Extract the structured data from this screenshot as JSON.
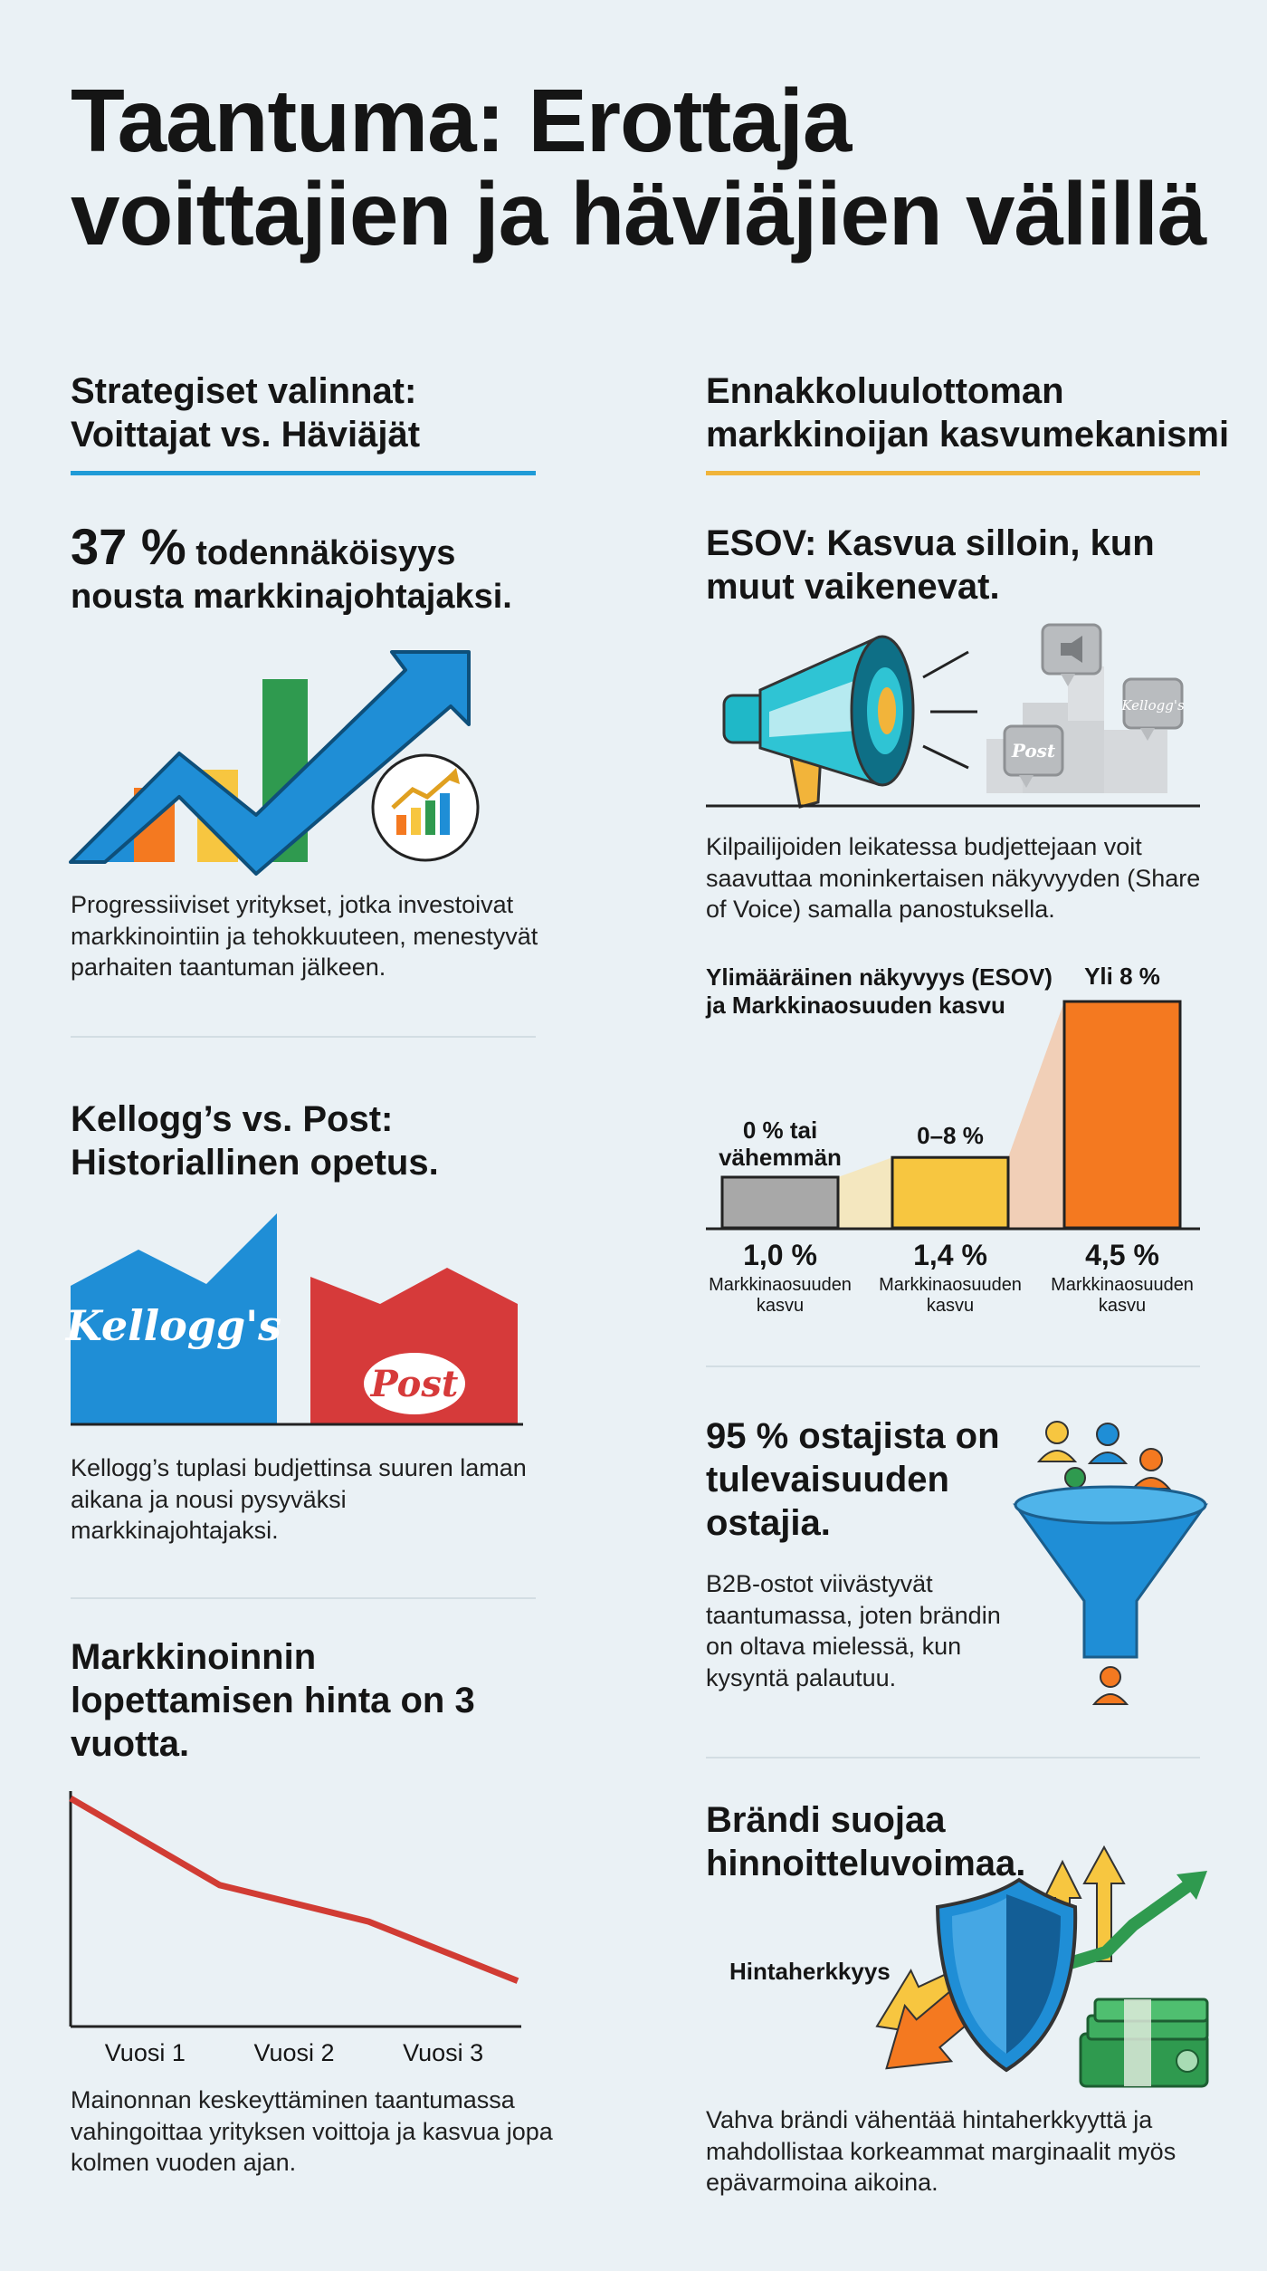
{
  "title": "Taantuma: Erottaja voittajien ja häviäjien välillä",
  "left_col": {
    "heading": "Strategiset valinnat: Voittajat vs. Häviäjät",
    "stat_number": "37 %",
    "stat_text_1": "todennäköisyys",
    "stat_text_2": "nousta markkinajohtajaksi.",
    "stat_body": "Progressiiviset yritykset, jotka investoivat markkinointiin ja tehokkuuteen, menestyvät parhaiten taantuman jälkeen.",
    "kellogg_heading": "Kellogg’s vs. Post: Historiallinen opetus.",
    "kellogg_logo": "Kellogg's",
    "post_logo": "Post",
    "kellogg_body": "Kellogg’s tuplasi budjettinsa suuren laman aikana ja nousi pysyväksi markkinajohtajaksi.",
    "cost_heading": "Markkinoinnin lopettamisen hinta on 3 vuotta.",
    "cost_body": "Mainonnan keskeyttäminen taantumassa vahingoittaa yrityksen voittoja ja kasvua jopa kolmen vuoden ajan."
  },
  "right_col": {
    "heading": "Ennakkoluulottoman markkinoijan kasvumekanismi",
    "esov_heading": "ESOV: Kasvua silloin, kun muut vaikenevat.",
    "esov_body": "Kilpailijoiden leikatessa budjettejaan voit saavuttaa moninkertaisen näkyvyyden (Share of Voice) samalla panostuksella.",
    "bubble_logo_1": "Kellogg's",
    "bubble_logo_2": "Post",
    "buyers_heading": "95 % ostajista on tulevaisuuden ostajia.",
    "buyers_body": "B2B-ostot viivästyvät taantumassa, joten brändin on oltava mielessä, kun kysyntä palautuu.",
    "brand_heading": "Brändi suojaa hinnoitteluvoimaa.",
    "brand_label": "Hintaherkkyys",
    "brand_body": "Vahva brändi vähentää hintaherkkyyttä ja mahdollistaa korkeammat marginaalit myös epävarmoina aikoina."
  },
  "chart_data": [
    {
      "type": "bar",
      "title": "Ylimääräinen näkyvyys (ESOV) ja Markkinaosuuden kasvu",
      "categories": [
        "0 % tai vähemmän",
        "0–8 %",
        "Yli 8 %"
      ],
      "values": [
        1.0,
        1.4,
        4.5
      ],
      "value_labels": [
        "1,0 %",
        "1,4 %",
        "4,5 %"
      ],
      "value_caption": "Markkinaosuuden kasvu",
      "colors": [
        "#a8a8a8",
        "#f7c640",
        "#f47920"
      ],
      "ylim": [
        0,
        4.5
      ]
    },
    {
      "type": "line",
      "categories": [
        "Vuosi 1",
        "Vuosi 2",
        "Vuosi 3"
      ],
      "x": [
        0,
        1,
        2,
        3
      ],
      "y": [
        100,
        62,
        46,
        20
      ],
      "ylim": [
        0,
        100
      ],
      "series_color": "#d13c34"
    }
  ],
  "colors": {
    "blue": "#1f8ed6",
    "gold": "#f0b43a",
    "orange": "#f47920",
    "red": "#d63a3a",
    "green": "#2f9a4f",
    "background": "#eaf1f5"
  },
  "icons": [
    "growth-chart-icon",
    "megaphone-icon",
    "speech-bubble-icon",
    "funnel-icon",
    "person-icon",
    "shield-icon",
    "arrows-icon",
    "money-stack-icon"
  ]
}
